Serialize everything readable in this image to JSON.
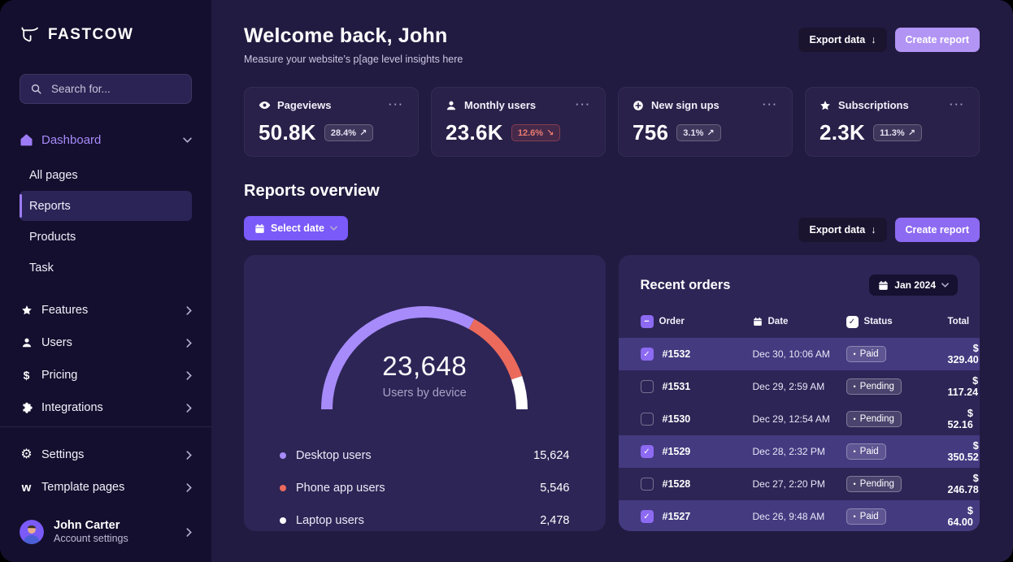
{
  "colors": {
    "accent_purple": "#8d6af2",
    "light_purple": "#b294f4",
    "select_date_purple": "#7a5af8",
    "salmon": "#ec6a5c",
    "negative_red": "#ea7b70",
    "sidebar_bg": "#140f2e",
    "main_bg": "#221b41",
    "panel_bg": "#2d2556",
    "row_highlight": "#443a80"
  },
  "sidebar": {
    "logo": "FASTCOW",
    "search": {
      "placeholder": "Search for..."
    },
    "dashboard": {
      "label": "Dashboard",
      "items": [
        {
          "label": "All pages",
          "active": false
        },
        {
          "label": "Reports",
          "active": true
        },
        {
          "label": "Products",
          "active": false
        },
        {
          "label": "Task",
          "active": false
        }
      ]
    },
    "groups": [
      {
        "label": "Features",
        "icon": "star-icon"
      },
      {
        "label": "Users",
        "icon": "user-icon"
      },
      {
        "label": "Pricing",
        "icon": "dollar-icon"
      },
      {
        "label": "Integrations",
        "icon": "puzzle-icon"
      }
    ],
    "footer_groups": [
      {
        "label": "Settings",
        "icon": "gear-icon"
      },
      {
        "label": "Template pages",
        "icon": "w-icon"
      }
    ],
    "account": {
      "name": "John Carter",
      "caption": "Account settings"
    }
  },
  "header": {
    "title": "Welcome back, John",
    "subtitle": "Measure your website’s p[age level insights here",
    "export_label": "Export data",
    "export_arrow": "↓",
    "create_label": "Create report"
  },
  "stat_cards": [
    {
      "icon": "eye-icon",
      "label": "Pageviews",
      "value": "50.8K",
      "delta": "28.4%",
      "arrow": "↗",
      "trend": "up"
    },
    {
      "icon": "user-icon",
      "label": "Monthly users",
      "value": "23.6K",
      "delta": "12.6%",
      "arrow": "↘",
      "trend": "down"
    },
    {
      "icon": "plus-circle-icon",
      "label": "New sign ups",
      "value": "756",
      "delta": "3.1%",
      "arrow": "↗",
      "trend": "up"
    },
    {
      "icon": "star-icon",
      "label": "Subscriptions",
      "value": "2.3K",
      "delta": "11.3%",
      "arrow": "↗",
      "trend": "up"
    }
  ],
  "reports": {
    "heading": "Reports overview",
    "select_date_label": "Select date",
    "export_label": "Export data",
    "export_arrow": "↓",
    "create_label": "Create report"
  },
  "chart_data": {
    "type": "pie",
    "variant": "half-donut-gauge",
    "title": "Users by device",
    "total": 23648,
    "total_label": "23,648",
    "segments": [
      {
        "label": "Desktop users",
        "value": 15624,
        "value_label": "15,624",
        "color": "#a78bfa"
      },
      {
        "label": "Phone app users",
        "value": 5546,
        "value_label": "5,546",
        "color": "#ec6a5c"
      },
      {
        "label": "Laptop users",
        "value": 2478,
        "value_label": "2,478",
        "color": "#ffffff"
      }
    ],
    "legend_position": "bottom"
  },
  "orders": {
    "heading": "Recent orders",
    "period": "Jan 2024",
    "columns": {
      "order": "Order",
      "date": "Date",
      "status": "Status",
      "total": "Total"
    },
    "rows": [
      {
        "id": "#1532",
        "date": "Dec 30, 10:06 AM",
        "status": "Paid",
        "total": "$ 329.40",
        "checked": true
      },
      {
        "id": "#1531",
        "date": "Dec 29, 2:59 AM",
        "status": "Pending",
        "total": "$ 117.24",
        "checked": false
      },
      {
        "id": "#1530",
        "date": "Dec 29, 12:54 AM",
        "status": "Pending",
        "total": "$ 52.16",
        "checked": false
      },
      {
        "id": "#1529",
        "date": "Dec 28, 2:32 PM",
        "status": "Paid",
        "total": "$ 350.52",
        "checked": true
      },
      {
        "id": "#1528",
        "date": "Dec 27, 2:20 PM",
        "status": "Pending",
        "total": "$ 246.78",
        "checked": false
      },
      {
        "id": "#1527",
        "date": "Dec 26, 9:48 AM",
        "status": "Paid",
        "total": "$ 64.00",
        "checked": true
      }
    ]
  }
}
